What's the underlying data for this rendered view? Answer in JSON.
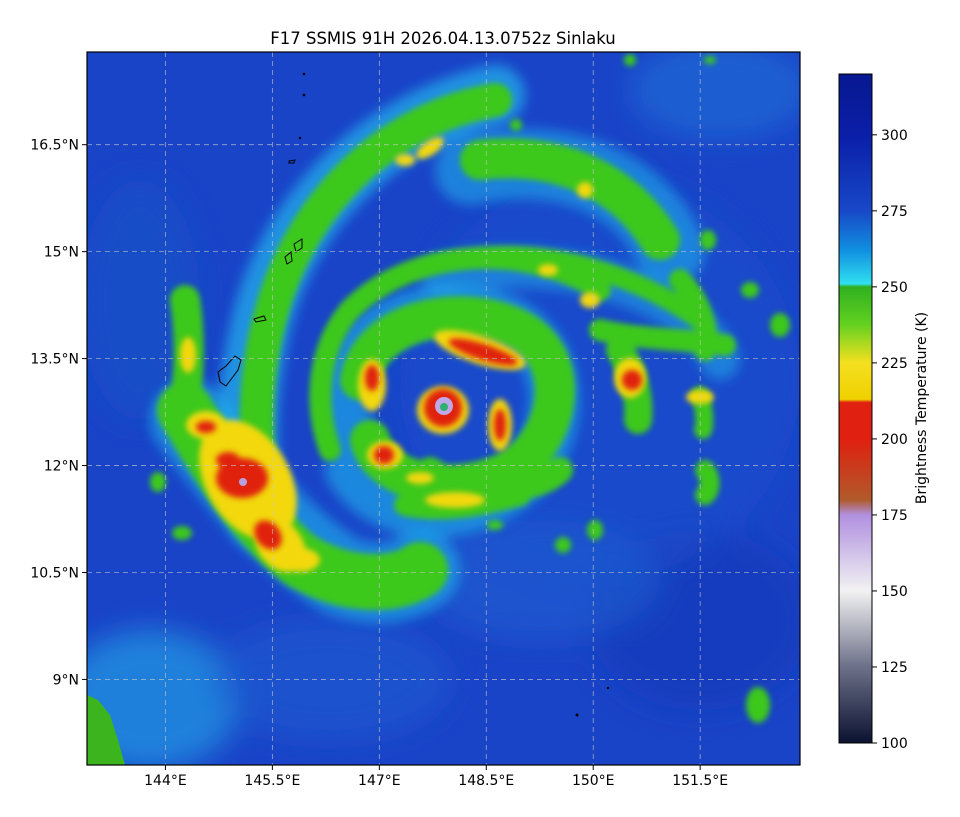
{
  "title": "F17 SSMIS 91H 2026.04.13.0752z Sinlaku",
  "map": {
    "lon_range": [
      142.9,
      152.9
    ],
    "lat_range": [
      7.8,
      17.8
    ],
    "lon_ticks": [
      {
        "value": 144.0,
        "label": "144°E"
      },
      {
        "value": 145.5,
        "label": "145.5°E"
      },
      {
        "value": 147.0,
        "label": "147°E"
      },
      {
        "value": 148.5,
        "label": "148.5°E"
      },
      {
        "value": 150.0,
        "label": "150°E"
      },
      {
        "value": 151.5,
        "label": "151.5°E"
      }
    ],
    "lat_ticks": [
      {
        "value": 16.5,
        "label": "16.5°N"
      },
      {
        "value": 15.0,
        "label": "15°N"
      },
      {
        "value": 13.5,
        "label": "13.5°N"
      },
      {
        "value": 12.0,
        "label": "12°N"
      },
      {
        "value": 10.5,
        "label": "10.5°N"
      },
      {
        "value": 9.0,
        "label": "9°N"
      }
    ],
    "gridlines": true,
    "storm_center": {
      "lon": 147.9,
      "lat": 12.95
    }
  },
  "colorbar": {
    "label": "Brightness Temperature (K)",
    "range": [
      100,
      320
    ],
    "ticks": [
      {
        "value": 100,
        "label": "100"
      },
      {
        "value": 125,
        "label": "125"
      },
      {
        "value": 150,
        "label": "150"
      },
      {
        "value": 175,
        "label": "175"
      },
      {
        "value": 200,
        "label": "200"
      },
      {
        "value": 225,
        "label": "225"
      },
      {
        "value": 250,
        "label": "250"
      },
      {
        "value": 275,
        "label": "275"
      },
      {
        "value": 300,
        "label": "300"
      }
    ],
    "color_stops": [
      {
        "value": 100,
        "color": "#0b1230"
      },
      {
        "value": 125,
        "color": "#6c7088"
      },
      {
        "value": 150,
        "color": "#f2f2f2"
      },
      {
        "value": 175,
        "color": "#b090e0"
      },
      {
        "value": 180,
        "color": "#b05a2a"
      },
      {
        "value": 200,
        "color": "#e02010"
      },
      {
        "value": 212,
        "color": "#e02010"
      },
      {
        "value": 213,
        "color": "#f0d000"
      },
      {
        "value": 225,
        "color": "#f4e020"
      },
      {
        "value": 238,
        "color": "#60d020"
      },
      {
        "value": 250,
        "color": "#30b020"
      },
      {
        "value": 251,
        "color": "#30e0f0"
      },
      {
        "value": 262,
        "color": "#1090e0"
      },
      {
        "value": 275,
        "color": "#1848c8"
      },
      {
        "value": 300,
        "color": "#0a1ea8"
      },
      {
        "value": 320,
        "color": "#081890"
      }
    ]
  }
}
